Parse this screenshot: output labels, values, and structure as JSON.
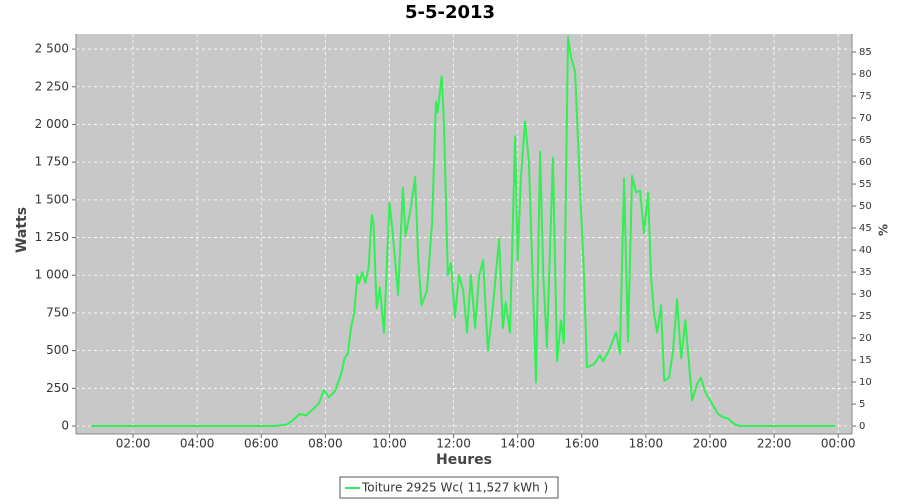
{
  "chart_data": {
    "type": "line",
    "title": "5-5-2013",
    "xlabel": "Heures",
    "ylabel": "Watts",
    "y2label": "%",
    "grid": true,
    "legend": "bottom",
    "x": [
      0.7,
      6.4,
      6.8,
      7.0,
      7.2,
      7.4,
      7.6,
      7.8,
      7.95,
      8.1,
      8.3,
      8.5,
      8.6,
      8.7,
      8.8,
      8.9,
      9.0,
      9.05,
      9.15,
      9.25,
      9.35,
      9.45,
      9.5,
      9.6,
      9.7,
      9.83,
      10.0,
      10.1,
      10.27,
      10.42,
      10.5,
      10.67,
      10.8,
      10.9,
      11.0,
      11.17,
      11.33,
      11.45,
      11.5,
      11.63,
      11.7,
      11.82,
      11.92,
      12.04,
      12.17,
      12.3,
      12.42,
      12.54,
      12.67,
      12.8,
      12.92,
      13.07,
      13.23,
      13.42,
      13.54,
      13.63,
      13.76,
      13.92,
      14.0,
      14.1,
      14.23,
      14.35,
      14.45,
      14.57,
      14.7,
      14.8,
      14.91,
      15.1,
      15.23,
      15.35,
      15.44,
      15.57,
      15.66,
      15.79,
      15.94,
      16.07,
      16.16,
      16.38,
      16.57,
      16.66,
      16.85,
      17.07,
      17.19,
      17.32,
      17.44,
      17.57,
      17.69,
      17.82,
      17.94,
      18.07,
      18.16,
      18.25,
      18.35,
      18.47,
      18.57,
      18.72,
      18.85,
      18.97,
      19.1,
      19.23,
      19.35,
      19.44,
      19.6,
      19.72,
      19.84,
      20.06,
      20.25,
      20.4,
      20.56,
      20.78,
      20.94,
      23.9
    ],
    "series": [
      {
        "name": "Toiture 2925 Wc( 11,527 kWh )",
        "color": "#33ee55",
        "values": [
          0,
          0,
          10,
          40,
          80,
          70,
          110,
          150,
          240,
          190,
          230,
          350,
          450,
          480,
          650,
          750,
          1000,
          950,
          1020,
          950,
          1050,
          1400,
          1350,
          780,
          920,
          620,
          1480,
          1280,
          870,
          1580,
          1260,
          1450,
          1650,
          1100,
          800,
          900,
          1350,
          2150,
          2080,
          2320,
          2000,
          1000,
          1080,
          720,
          1000,
          900,
          620,
          1000,
          650,
          1000,
          1100,
          500,
          800,
          1240,
          650,
          820,
          620,
          1920,
          1100,
          1650,
          2020,
          1750,
          1100,
          290,
          1820,
          1000,
          520,
          1780,
          430,
          700,
          550,
          2580,
          2450,
          2350,
          1600,
          1000,
          390,
          410,
          470,
          430,
          500,
          620,
          480,
          1640,
          560,
          1660,
          1550,
          1560,
          1280,
          1550,
          1000,
          750,
          620,
          800,
          300,
          320,
          500,
          840,
          450,
          700,
          400,
          170,
          280,
          320,
          230,
          150,
          80,
          60,
          50,
          10,
          0,
          0
        ]
      }
    ],
    "xlim": [
      0.22,
      24.43
    ],
    "xticks": [
      {
        "value": 2,
        "label": "02:00"
      },
      {
        "value": 4,
        "label": "04:00"
      },
      {
        "value": 6,
        "label": "06:00"
      },
      {
        "value": 8,
        "label": "08:00"
      },
      {
        "value": 10,
        "label": "10:00"
      },
      {
        "value": 12,
        "label": "12:00"
      },
      {
        "value": 14,
        "label": "14:00"
      },
      {
        "value": 16,
        "label": "16:00"
      },
      {
        "value": 18,
        "label": "18:00"
      },
      {
        "value": 20,
        "label": "20:00"
      },
      {
        "value": 22,
        "label": "22:00"
      },
      {
        "value": 24,
        "label": "00:00"
      }
    ],
    "ylim": [
      -53,
      2600
    ],
    "yticks": [
      0,
      250,
      500,
      750,
      {
        "value": 1000,
        "label": "1 000"
      },
      {
        "value": 1250,
        "label": "1 250"
      },
      {
        "value": 1500,
        "label": "1 500"
      },
      {
        "value": 1750,
        "label": "1 750"
      },
      {
        "value": 2000,
        "label": "2 000"
      },
      {
        "value": 2250,
        "label": "2 250"
      },
      {
        "value": 2500,
        "label": "2 500"
      }
    ],
    "y2lim": [
      -1.8,
      89.1
    ],
    "y2ticks": [
      0,
      5,
      10,
      15,
      20,
      25,
      30,
      35,
      40,
      45,
      50,
      55,
      60,
      65,
      70,
      75,
      80,
      85
    ]
  }
}
